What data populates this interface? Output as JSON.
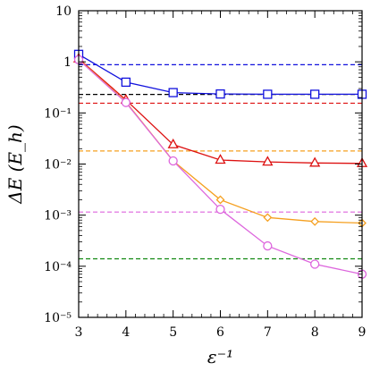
{
  "chart_data": {
    "type": "line",
    "title": "",
    "xlabel": "ε⁻¹",
    "ylabel": "ΔE (E_h)",
    "x_scale": "linear",
    "y_scale": "log",
    "xlim": [
      3,
      9
    ],
    "ylim": [
      1e-05,
      10
    ],
    "grid": false,
    "legend": "none",
    "x_ticks": [
      3,
      4,
      5,
      6,
      7,
      8,
      9
    ],
    "y_ticks": [
      {
        "value": 10,
        "label": "10"
      },
      {
        "value": 1,
        "label": "1"
      },
      {
        "value": 0.1,
        "label": "10⁻¹"
      },
      {
        "value": 0.01,
        "label": "10⁻²"
      },
      {
        "value": 0.001,
        "label": "10⁻³"
      },
      {
        "value": 0.0001,
        "label": "10⁻⁴"
      },
      {
        "value": 1e-05,
        "label": "10⁻⁵"
      }
    ],
    "x": [
      3,
      4,
      5,
      6,
      7,
      8,
      9
    ],
    "series": [
      {
        "marker": "square",
        "color": "#1111dd",
        "values": [
          1.4,
          0.4,
          0.25,
          0.235,
          0.232,
          0.232,
          0.232
        ],
        "reference": 0.88
      },
      {
        "marker": "triangle",
        "color": "#dd1111",
        "values": [
          1.15,
          0.18,
          0.024,
          0.012,
          0.011,
          0.0105,
          0.0103
        ],
        "reference": 0.155
      },
      {
        "marker": "diamond",
        "color": "#f5a020",
        "values": [
          1.12,
          0.165,
          0.0115,
          0.002,
          0.0009,
          0.00075,
          0.0007
        ],
        "reference": 0.018
      },
      {
        "marker": "circle",
        "color": "#dd66dd",
        "values": [
          1.1,
          0.16,
          0.0115,
          0.0013,
          0.00025,
          0.00011,
          7e-05
        ],
        "reference": 0.00115
      }
    ],
    "extra_reference_lines": [
      {
        "color": "#000000",
        "value": 0.23
      },
      {
        "color": "#118811",
        "value": 0.00014
      }
    ]
  }
}
